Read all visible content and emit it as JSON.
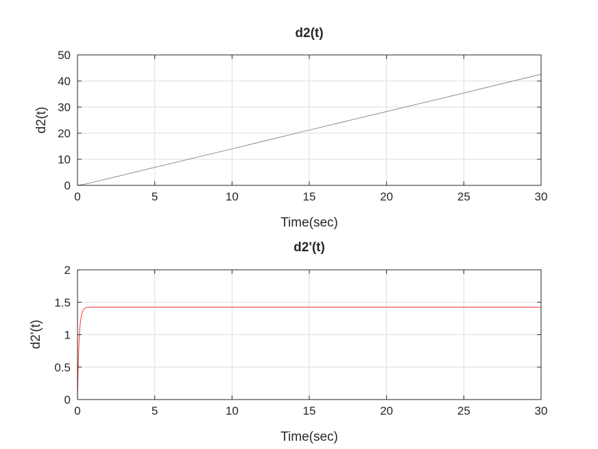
{
  "chart_data": [
    {
      "type": "line",
      "title": "d2(t)",
      "xlabel": "Time(sec)",
      "ylabel": "d2(t)",
      "xlim": [
        0,
        30
      ],
      "ylim": [
        0,
        50
      ],
      "xticks": [
        0,
        5,
        10,
        15,
        20,
        25,
        30
      ],
      "yticks": [
        0,
        10,
        20,
        30,
        40,
        50
      ],
      "grid": true,
      "series": [
        {
          "color": "#8c8c8c",
          "x": [
            0,
            0.5,
            1,
            2,
            5,
            10,
            15,
            20,
            25,
            30
          ],
          "y": [
            0,
            0.5,
            1.2,
            2.6,
            6.9,
            14.0,
            21.2,
            28.3,
            35.4,
            42.6
          ]
        }
      ]
    },
    {
      "type": "line",
      "title": "d2'(t)",
      "xlabel": "Time(sec)",
      "ylabel": "d2'(t)",
      "xlim": [
        0,
        30
      ],
      "ylim": [
        0,
        2
      ],
      "xticks": [
        0,
        5,
        10,
        15,
        20,
        25,
        30
      ],
      "yticks": [
        0,
        0.5,
        1,
        1.5,
        2
      ],
      "grid": true,
      "series": [
        {
          "color": "#ff3333",
          "x": [
            0,
            0.05,
            0.1,
            0.15,
            0.2,
            0.3,
            0.4,
            0.5,
            0.6,
            0.8,
            1.0,
            1.5,
            2,
            5,
            10,
            15,
            20,
            25,
            30
          ],
          "y": [
            0,
            0.56,
            0.9,
            1.1,
            1.22,
            1.34,
            1.39,
            1.41,
            1.42,
            1.425,
            1.425,
            1.425,
            1.425,
            1.425,
            1.425,
            1.425,
            1.425,
            1.425,
            1.425
          ]
        }
      ]
    }
  ]
}
